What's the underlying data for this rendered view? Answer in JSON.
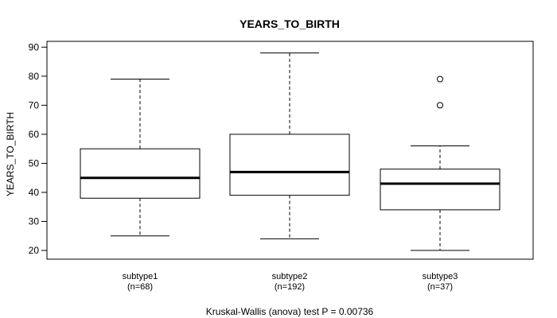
{
  "chart_data": {
    "type": "boxplot",
    "title": "YEARS_TO_BIRTH",
    "ylabel": "YEARS_TO_BIRTH",
    "xlabel": "",
    "ylim": [
      17,
      92
    ],
    "yticks": [
      20,
      30,
      40,
      50,
      60,
      70,
      80,
      90
    ],
    "footnote": "Kruskal-Wallis (anova) test P = 0.00736",
    "groups": [
      {
        "name": "subtype1",
        "n_label": "(n=68)",
        "whisker_low": 25,
        "q1": 38,
        "median": 45,
        "q3": 55,
        "whisker_high": 79,
        "outliers": []
      },
      {
        "name": "subtype2",
        "n_label": "(n=192)",
        "whisker_low": 24,
        "q1": 39,
        "median": 47,
        "q3": 60,
        "whisker_high": 88,
        "outliers": []
      },
      {
        "name": "subtype3",
        "n_label": "(n=37)",
        "whisker_low": 20,
        "q1": 34,
        "median": 43,
        "q3": 48,
        "whisker_high": 56,
        "outliers": [
          70,
          79
        ]
      }
    ]
  }
}
